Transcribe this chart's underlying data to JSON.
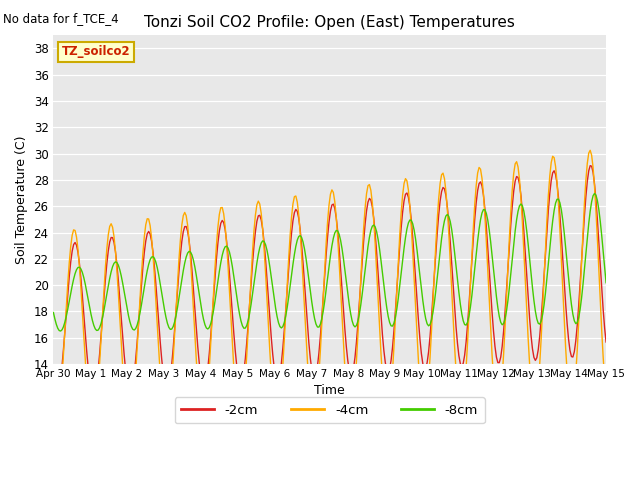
{
  "title": "Tonzi Soil CO2 Profile: Open (East) Temperatures",
  "subtitle": "No data for f_TCE_4",
  "xlabel": "Time",
  "ylabel": "Soil Temperature (C)",
  "ylim": [
    14,
    39
  ],
  "yticks": [
    14,
    16,
    18,
    20,
    22,
    24,
    26,
    28,
    30,
    32,
    34,
    36,
    38
  ],
  "bg_color": "#e8e8e8",
  "line_colors": {
    "-2cm": "#dd2222",
    "-4cm": "#ffaa00",
    "-8cm": "#44cc00"
  },
  "legend_label": "TZ_soilco2",
  "legend_box_color": "#ffffcc",
  "legend_box_edge": "#ccaa00",
  "tick_labels": [
    "Apr 30",
    "May 1",
    "May 2",
    "May 3",
    "May 4",
    "May 5",
    "May 6",
    "May 7",
    "May 8",
    "May 9",
    "May 10",
    "May 11",
    "May 12",
    "May 13",
    "May 14",
    "May 15"
  ]
}
